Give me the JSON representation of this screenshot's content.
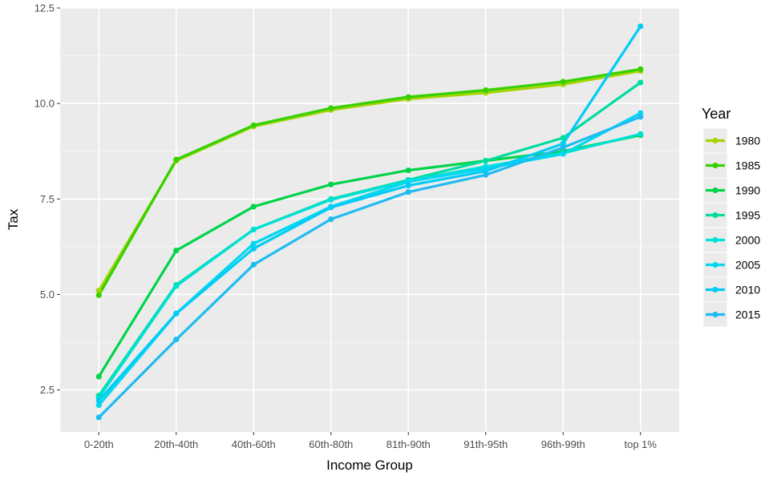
{
  "chart_data": {
    "type": "line",
    "title": "",
    "xlabel": "Income Group",
    "ylabel": "Tax",
    "categories": [
      "0-20th",
      "20th-40th",
      "40th-60th",
      "60th-80th",
      "81th-90th",
      "91th-95th",
      "96th-99th",
      "top 1%"
    ],
    "ylim": [
      1.4,
      12.5
    ],
    "yticks": [
      2.5,
      5.0,
      7.5,
      10.0,
      12.5
    ],
    "ytick_labels": [
      "2.5",
      "5.0",
      "7.5",
      "10.0",
      "12.5"
    ],
    "grid": true,
    "legend": {
      "title": "Year",
      "position": "right"
    },
    "series": [
      {
        "name": "1980",
        "color": "#a3d400",
        "values": [
          5.1,
          8.5,
          9.4,
          9.83,
          10.12,
          10.28,
          10.5,
          10.85
        ]
      },
      {
        "name": "1985",
        "color": "#36d100",
        "values": [
          4.98,
          8.53,
          9.43,
          9.88,
          10.17,
          10.35,
          10.57,
          10.9
        ]
      },
      {
        "name": "1990",
        "color": "#00d44a",
        "values": [
          2.85,
          6.15,
          7.3,
          7.88,
          8.25,
          8.5,
          8.75,
          9.17
        ]
      },
      {
        "name": "1995",
        "color": "#00dca0",
        "values": [
          2.35,
          5.25,
          6.7,
          7.5,
          8.0,
          8.5,
          9.1,
          10.55
        ]
      },
      {
        "name": "2000",
        "color": "#00e0d4",
        "values": [
          2.3,
          5.22,
          6.7,
          7.48,
          7.98,
          8.35,
          8.7,
          9.2
        ]
      },
      {
        "name": "2005",
        "color": "#00d8f0",
        "values": [
          2.1,
          4.5,
          6.33,
          7.3,
          7.95,
          8.3,
          8.68,
          9.75
        ]
      },
      {
        "name": "2010",
        "color": "#00ccf5",
        "values": [
          2.22,
          4.5,
          6.2,
          7.28,
          7.85,
          8.23,
          8.95,
          12.02
        ]
      },
      {
        "name": "2015",
        "color": "#1fbcf2",
        "values": [
          1.78,
          3.82,
          5.78,
          6.97,
          7.68,
          8.13,
          8.85,
          9.65
        ]
      }
    ]
  }
}
